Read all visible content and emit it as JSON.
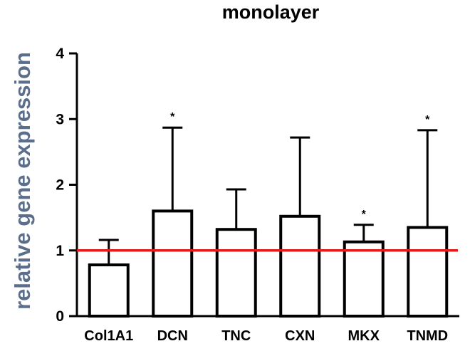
{
  "chart_data": {
    "type": "bar",
    "title": "monolayer",
    "xlabel": "",
    "ylabel": "relative gene expression",
    "ylim": [
      0,
      4
    ],
    "yticks": [
      0,
      1,
      2,
      3,
      4
    ],
    "categories": [
      "Col1A1",
      "DCN",
      "TNC",
      "CXN",
      "MKX",
      "TNMD"
    ],
    "series": [
      {
        "values": [
          0.78,
          1.6,
          1.32,
          1.52,
          1.13,
          1.35
        ],
        "error_upper": [
          1.16,
          2.87,
          1.93,
          2.72,
          1.39,
          2.83
        ],
        "significance": [
          "",
          "*",
          "",
          "",
          "*",
          "*"
        ]
      }
    ],
    "reference_line": {
      "y": 1,
      "color": "#e8191b"
    },
    "bar_fill": "#ffffff",
    "bar_stroke": "#000000",
    "ylabel_color": "#5b6e8c",
    "grid": false,
    "legend": "none"
  }
}
